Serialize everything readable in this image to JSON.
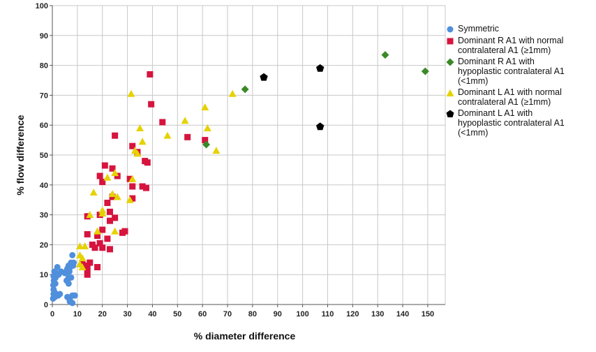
{
  "chart_data": {
    "type": "scatter",
    "xlabel": "% diameter difference",
    "ylabel": "% flow difference",
    "xlim": [
      0,
      157
    ],
    "ylim": [
      0,
      100
    ],
    "xticks": [
      0,
      10,
      20,
      30,
      40,
      50,
      60,
      70,
      80,
      90,
      100,
      110,
      120,
      130,
      140,
      150
    ],
    "yticks": [
      0,
      10,
      20,
      30,
      40,
      50,
      60,
      70,
      80,
      90,
      100
    ],
    "grid": true,
    "legend_position": "right",
    "series": [
      {
        "name": "Symmetric",
        "marker": "circle",
        "color": "#4f8fdc",
        "points": [
          [
            0.3,
            2
          ],
          [
            0.5,
            3.5
          ],
          [
            0.5,
            5
          ],
          [
            0.4,
            6.5
          ],
          [
            0.6,
            8
          ],
          [
            0.5,
            9.5
          ],
          [
            0.8,
            11
          ],
          [
            1,
            2.5
          ],
          [
            1,
            4
          ],
          [
            1.2,
            7
          ],
          [
            1.3,
            9
          ],
          [
            1.5,
            10.5
          ],
          [
            2,
            12.5
          ],
          [
            2.3,
            3
          ],
          [
            2.5,
            10
          ],
          [
            3,
            3.5
          ],
          [
            3.5,
            11
          ],
          [
            5,
            10.5
          ],
          [
            5.5,
            11
          ],
          [
            5.7,
            8
          ],
          [
            6,
            12
          ],
          [
            6,
            8
          ],
          [
            6.5,
            13
          ],
          [
            6.5,
            7
          ],
          [
            7,
            12.5
          ],
          [
            7.5,
            9
          ],
          [
            7.5,
            14
          ],
          [
            8,
            16.5
          ],
          [
            8,
            13
          ],
          [
            8.5,
            14
          ],
          [
            8.3,
            13
          ],
          [
            6,
            2.5
          ],
          [
            7,
            1
          ],
          [
            8,
            3
          ],
          [
            9,
            3
          ],
          [
            8,
            0.5
          ],
          [
            7,
            1.5
          ],
          [
            6.5,
            9
          ],
          [
            6.8,
            11.5
          ],
          [
            6.8,
            11
          ],
          [
            7,
            12.5
          ],
          [
            7.5,
            13.5
          ]
        ]
      },
      {
        "name": "Dominant R A1 with normal\ncontralateral A1 (≥1mm)",
        "marker": "square",
        "color": "#d6143e",
        "points": [
          [
            39,
            77
          ],
          [
            39.5,
            67
          ],
          [
            44,
            61
          ],
          [
            54,
            56
          ],
          [
            61,
            55
          ],
          [
            25,
            56.5
          ],
          [
            32,
            53
          ],
          [
            34,
            51
          ],
          [
            37,
            48
          ],
          [
            38,
            47.5
          ],
          [
            24,
            45.5
          ],
          [
            21,
            46.5
          ],
          [
            19,
            43
          ],
          [
            26,
            43
          ],
          [
            31,
            42
          ],
          [
            20,
            41
          ],
          [
            32,
            39.5
          ],
          [
            36,
            39.5
          ],
          [
            37.5,
            39
          ],
          [
            24,
            36
          ],
          [
            32,
            35.5
          ],
          [
            22,
            34
          ],
          [
            23,
            31
          ],
          [
            14,
            29.5
          ],
          [
            19,
            30
          ],
          [
            25,
            29
          ],
          [
            23,
            28
          ],
          [
            29,
            24.5
          ],
          [
            28,
            24
          ],
          [
            20,
            25
          ],
          [
            14,
            23.5
          ],
          [
            18,
            23
          ],
          [
            22,
            22
          ],
          [
            16,
            20
          ],
          [
            19,
            20.5
          ],
          [
            17,
            19
          ],
          [
            20,
            19
          ],
          [
            23,
            18.5
          ],
          [
            15,
            14
          ],
          [
            13,
            13
          ],
          [
            18,
            12.5
          ],
          [
            12,
            13.5
          ],
          [
            14,
            12
          ],
          [
            14,
            10
          ]
        ]
      },
      {
        "name": "Dominant R A1 with\nhypoplastic contralateral A1\n(<1mm)",
        "marker": "diamond",
        "color": "#3a8a28",
        "points": [
          [
            133,
            83.5
          ],
          [
            149,
            78
          ],
          [
            77,
            72
          ],
          [
            61.5,
            53.5
          ]
        ]
      },
      {
        "name": "Dominant L A1 with normal\ncontralateral A1 (≥1mm)",
        "marker": "triangle",
        "color": "#e6d200",
        "points": [
          [
            31.5,
            70.5
          ],
          [
            72,
            70.5
          ],
          [
            61,
            66
          ],
          [
            53,
            61.5
          ],
          [
            35,
            59
          ],
          [
            62,
            59
          ],
          [
            46,
            56.5
          ],
          [
            36,
            54.5
          ],
          [
            33,
            51.5
          ],
          [
            34,
            50.5
          ],
          [
            65.5,
            51.5
          ],
          [
            25,
            44
          ],
          [
            22,
            42.5
          ],
          [
            32,
            42
          ],
          [
            16.5,
            37.5
          ],
          [
            24,
            37
          ],
          [
            26,
            36
          ],
          [
            31,
            35
          ],
          [
            20,
            31.5
          ],
          [
            20,
            30.5
          ],
          [
            15,
            30
          ],
          [
            25,
            24.5
          ],
          [
            18,
            24.5
          ],
          [
            11,
            19.5
          ],
          [
            13,
            19.5
          ],
          [
            11,
            16.5
          ],
          [
            12,
            15.5
          ],
          [
            11,
            13.5
          ],
          [
            12,
            12.5
          ]
        ]
      },
      {
        "name": "Dominant L A1 with\nhypoplastic contralateral A1\n(<1mm)",
        "marker": "pentagon",
        "color": "#000000",
        "points": [
          [
            84.5,
            76
          ],
          [
            107,
            79
          ],
          [
            107,
            59.5
          ]
        ]
      }
    ]
  }
}
